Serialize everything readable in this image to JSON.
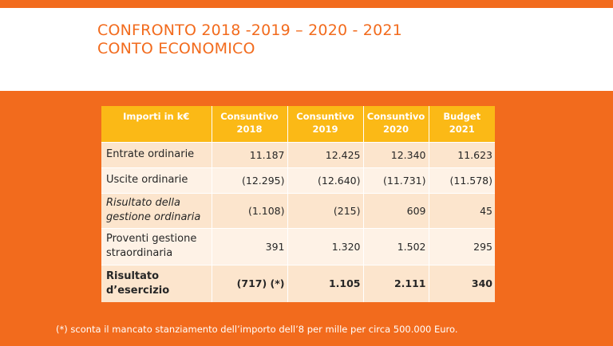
{
  "title": {
    "line1": "CONFRONTO 2018 -2019 – 2020 - 2021",
    "line2": "CONTO ECONOMICO"
  },
  "table": {
    "headers": [
      [
        "Importi in k€"
      ],
      [
        "Consuntivo",
        "2018"
      ],
      [
        "Consuntivo",
        "2019"
      ],
      [
        "Consuntivo",
        "2020"
      ],
      [
        "Budget",
        "2021"
      ]
    ],
    "rows": [
      {
        "label": [
          "Entrate ordinarie"
        ],
        "values": [
          "11.187",
          "12.425",
          "12.340",
          "11.623"
        ]
      },
      {
        "label": [
          "Uscite ordinarie"
        ],
        "values": [
          "(12.295)",
          "(12.640)",
          "(11.731)",
          "(11.578)"
        ]
      },
      {
        "label": [
          "Risultato della",
          "gestione ordinaria"
        ],
        "values": [
          "(1.108)",
          "(215)",
          "609",
          "45"
        ]
      },
      {
        "label": [
          "Proventi gestione",
          "straordinaria"
        ],
        "values": [
          "391",
          "1.320",
          "1.502",
          "295"
        ]
      },
      {
        "label": [
          "Risultato",
          "d’esercizio"
        ],
        "values": [
          "(717) (*)",
          "1.105",
          "2.111",
          "340"
        ]
      }
    ]
  },
  "footnote": "(*) sconta il mancato stanziamento dell’importo dell’8 per mille per circa 500.000 Euro.",
  "colors": {
    "accent": "#f26b1d",
    "header_fill": "#fbb916",
    "row_odd": "#fce5cd",
    "row_even": "#fef2e6"
  }
}
